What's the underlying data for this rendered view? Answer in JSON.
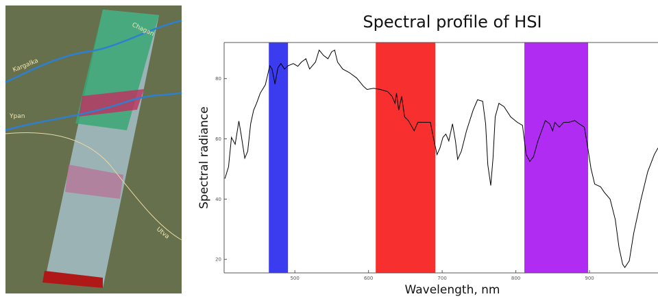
{
  "map": {
    "labels": [
      "Kargalka",
      "Ypan",
      "Chagan",
      "Utva"
    ]
  },
  "chart_data": {
    "type": "line",
    "title": "Spectral profile of HSI",
    "x_label": "Wavelength, nm",
    "y_label": "Spectral radiance",
    "color": "#000000",
    "x": [
      405,
      410,
      414,
      419,
      424,
      427,
      432,
      436,
      440,
      444,
      448,
      453,
      460,
      466,
      469,
      473,
      477,
      481,
      486,
      491,
      498,
      504,
      509,
      515,
      520,
      528,
      533,
      539,
      545,
      550,
      554,
      558,
      565,
      574,
      584,
      593,
      598,
      607,
      616,
      626,
      632,
      636,
      638,
      641,
      645,
      649,
      654,
      662,
      667,
      677,
      684,
      688,
      693,
      697,
      701,
      705,
      709,
      714,
      718,
      721,
      726,
      733,
      742,
      748,
      755,
      759,
      762,
      766,
      769,
      772,
      777,
      784,
      793,
      802,
      809,
      814,
      819,
      824,
      830,
      840,
      846,
      850,
      853,
      859,
      865,
      872,
      880,
      886,
      893,
      897,
      902,
      907,
      915,
      920,
      928,
      935,
      940,
      945,
      948,
      954,
      960,
      970,
      979,
      988,
      993
    ],
    "values": [
      46.8,
      50.7,
      60.5,
      58.2,
      65.9,
      61.6,
      53.6,
      55.9,
      65,
      69.5,
      71.8,
      75.2,
      78,
      84.3,
      83.2,
      78.2,
      83.6,
      85,
      83.2,
      84.3,
      85,
      84.1,
      85.5,
      86.6,
      83.2,
      85.5,
      89.5,
      87.7,
      86.6,
      88.9,
      89.5,
      85.5,
      83.2,
      82,
      80.2,
      77.5,
      76.4,
      76.8,
      76.4,
      75.7,
      74.1,
      71.8,
      75.2,
      69.5,
      74.1,
      67.3,
      66.1,
      62.7,
      65.5,
      65.5,
      65.5,
      60.5,
      54.8,
      57,
      60.5,
      61.6,
      59.3,
      65,
      59.3,
      53.2,
      55.9,
      62.7,
      69.5,
      73,
      72.5,
      65,
      51.4,
      44.5,
      53.6,
      67.3,
      71.8,
      70.7,
      67.3,
      65.5,
      64.5,
      54.8,
      52.5,
      54.1,
      59.3,
      66.1,
      65,
      62.7,
      65.5,
      63.9,
      65.5,
      65.5,
      66.1,
      65,
      63.9,
      58.2,
      50.2,
      45,
      44.1,
      42.3,
      40,
      33.2,
      24.1,
      18.4,
      17.3,
      19.5,
      28.6,
      40,
      49.1,
      54.8,
      57
    ],
    "bands": [
      {
        "xmin": 464.7,
        "xmax": 490.7,
        "color": "#3b3bf0"
      },
      {
        "xmin": 609.8,
        "xmax": 690.7,
        "color": "#f72f2f"
      },
      {
        "xmin": 811.6,
        "xmax": 898.1,
        "color": "#b02cf2"
      }
    ],
    "xlim": [
      404,
      993
    ],
    "ylim": [
      15.5,
      92
    ],
    "xticks": [
      500,
      600,
      700,
      800,
      900
    ],
    "yticks": [
      20,
      40,
      60,
      80
    ]
  }
}
